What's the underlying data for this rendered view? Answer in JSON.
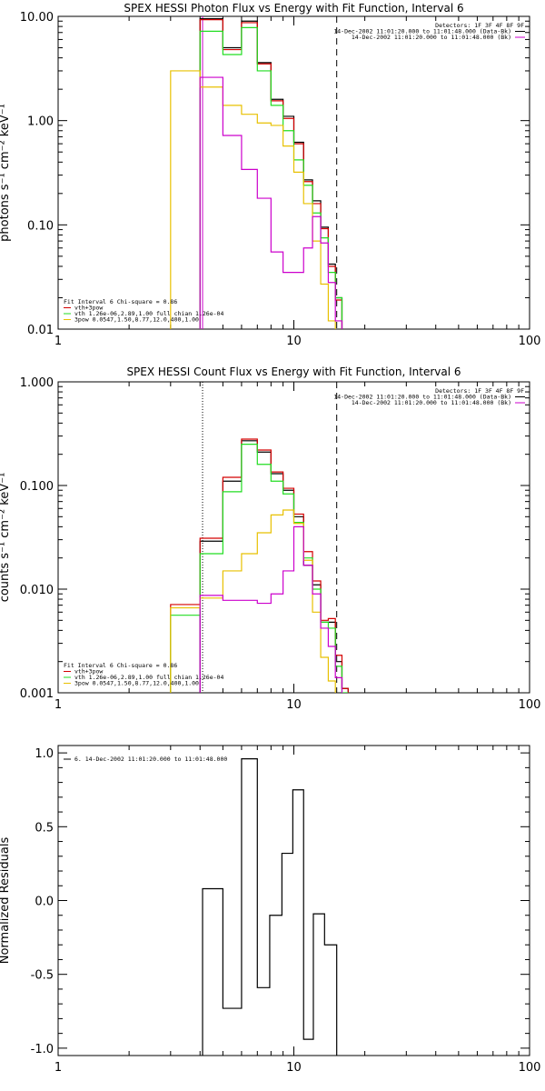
{
  "colors": {
    "black": "#000000",
    "red": "#d40000",
    "green": "#22dd22",
    "magenta": "#cc00cc",
    "orange": "#e8c000"
  },
  "chart_data": [
    {
      "type": "line",
      "step": true,
      "title": "SPEX HESSI Photon Flux vs Energy with Fit Function, Interval 6",
      "ylabel": "photons s⁻¹ cm⁻² keV⁻¹",
      "xlabel": "",
      "xscale": "log",
      "yscale": "log",
      "xlim": [
        1,
        100
      ],
      "ylim": [
        0.01,
        10
      ],
      "x_ticks": [
        "1",
        "10",
        "100"
      ],
      "y_ticks": [
        "0.01",
        "0.10",
        "1.00",
        "10.00"
      ],
      "edges": [
        3,
        4,
        5,
        6,
        7,
        8,
        9,
        10,
        11,
        12,
        13,
        14,
        15,
        16,
        17
      ],
      "series": [
        {
          "color_key": "black",
          "values": [
            null,
            9.5,
            5.0,
            9.0,
            3.6,
            1.6,
            1.1,
            0.62,
            0.27,
            0.17,
            0.095,
            0.042,
            0.02,
            null
          ]
        },
        {
          "color_key": "red",
          "values": [
            null,
            9.3,
            4.8,
            8.7,
            3.5,
            1.55,
            1.05,
            0.6,
            0.26,
            0.16,
            0.092,
            0.04,
            0.019,
            null
          ]
        },
        {
          "color_key": "green",
          "values": [
            null,
            7.2,
            4.3,
            7.8,
            3.0,
            1.4,
            0.8,
            0.42,
            0.24,
            0.13,
            0.075,
            0.035,
            0.02,
            null
          ]
        },
        {
          "color_key": "orange",
          "values": [
            3.0,
            2.1,
            1.4,
            1.15,
            0.95,
            0.9,
            0.57,
            0.32,
            0.16,
            0.07,
            0.027,
            0.012,
            null,
            null
          ]
        },
        {
          "color_key": "magenta",
          "values": [
            null,
            2.6,
            0.72,
            0.34,
            0.18,
            0.055,
            0.035,
            0.035,
            0.06,
            0.12,
            0.067,
            0.028,
            0.012,
            null
          ]
        }
      ],
      "vlines": [
        {
          "x": 4.1,
          "style": "solid",
          "color_key": "magenta"
        },
        {
          "x": 15.2,
          "style": "dashed",
          "color_key": "black"
        }
      ],
      "header_lines": [
        "Detectors: 1F 3F 4F 8F 9F",
        "14-Dec-2002 11:01:20.000 to 11:01:48.000 (Data-Bk)",
        "14-Dec-2002 11:01:20.000 to 11:01:48.000 (Bk)"
      ],
      "legend": [
        {
          "text": "Fit Interval 6   Chi-square = 0.86",
          "color_key": null
        },
        {
          "text": "vth+3pow",
          "color_key": "red"
        },
        {
          "text": "vth 1.26e-06,2.89,1.00   full chian 1.26e-04",
          "color_key": "green"
        },
        {
          "text": "3pow 0.0547,1.50,8.77,12.0,400,1.00",
          "color_key": "orange"
        }
      ]
    },
    {
      "type": "line",
      "step": true,
      "title": "SPEX HESSI Count Flux vs Energy with Fit Function, Interval 6",
      "ylabel": "counts s⁻¹ cm⁻² keV⁻¹",
      "xlabel": "",
      "xscale": "log",
      "yscale": "log",
      "xlim": [
        1,
        100
      ],
      "ylim": [
        0.001,
        1
      ],
      "x_ticks": [
        "1",
        "10",
        "100"
      ],
      "y_ticks": [
        "0.001",
        "0.010",
        "0.100",
        "1.000"
      ],
      "edges": [
        3,
        4,
        5,
        6,
        7,
        8,
        9,
        10,
        11,
        12,
        13,
        14,
        15,
        16,
        17,
        18
      ],
      "series": [
        {
          "color_key": "black",
          "values": [
            null,
            0.029,
            0.11,
            0.27,
            0.21,
            0.13,
            0.09,
            0.05,
            0.017,
            0.011,
            0.0048,
            0.0048,
            0.002,
            0.0011,
            null
          ]
        },
        {
          "color_key": "red",
          "values": [
            0.0071,
            0.031,
            0.12,
            0.28,
            0.22,
            0.135,
            0.094,
            0.053,
            0.023,
            0.012,
            0.005,
            0.0052,
            0.0023,
            0.0011,
            null
          ]
        },
        {
          "color_key": "green",
          "values": [
            0.0056,
            0.022,
            0.087,
            0.25,
            0.16,
            0.11,
            0.083,
            0.044,
            0.02,
            0.01,
            0.0048,
            0.0042,
            0.0018,
            0.001,
            null
          ]
        },
        {
          "color_key": "orange",
          "values": [
            0.0066,
            0.0082,
            0.015,
            0.022,
            0.035,
            0.052,
            0.058,
            0.043,
            0.019,
            0.006,
            0.0022,
            0.0013,
            null,
            null,
            null
          ]
        },
        {
          "color_key": "magenta",
          "values": [
            null,
            0.0087,
            0.0078,
            0.0078,
            0.0073,
            0.009,
            0.015,
            0.04,
            0.017,
            0.009,
            0.0042,
            0.0028,
            0.0014,
            null,
            null
          ]
        }
      ],
      "vlines": [
        {
          "x": 4.1,
          "style": "dotted",
          "color_key": "black"
        },
        {
          "x": 15.2,
          "style": "dashed",
          "color_key": "black"
        }
      ],
      "header_lines": [
        "Detectors: 1F 3F 4F 8F 9F",
        "14-Dec-2002 11:01:20.000 to 11:01:48.000 (Data-Bk)",
        "14-Dec-2002 11:01:20.000 to 11:01:48.000 (Bk)"
      ],
      "legend": [
        {
          "text": "Fit Interval 6   Chi-square = 0.86",
          "color_key": null
        },
        {
          "text": "vth+3pow",
          "color_key": "red"
        },
        {
          "text": "vth 1.26e-06,2.89,1.00   full chian 1.26e-04",
          "color_key": "green"
        },
        {
          "text": "3pow 0.0547,1.50,8.77,12.0,400,1.00",
          "color_key": "orange"
        }
      ]
    },
    {
      "type": "line",
      "step": true,
      "title": "",
      "ylabel": "Normalized Residuals",
      "xlabel": "",
      "xscale": "log",
      "yscale": "linear",
      "xlim": [
        1,
        100
      ],
      "ylim": [
        -1.05,
        1.05
      ],
      "x_ticks": [
        "1",
        "10",
        "100"
      ],
      "y_ticks": [
        "-1.0",
        "-0.5",
        "0.0",
        "0.5",
        "1.0"
      ],
      "edges": [
        4.1,
        5.0,
        6.0,
        7.0,
        7.9,
        8.9,
        9.9,
        11.0,
        12.1,
        13.5,
        15.2
      ],
      "series": [
        {
          "color_key": "black",
          "values": [
            0.08,
            -0.73,
            0.96,
            -0.59,
            -0.1,
            0.32,
            0.75,
            -0.94,
            -0.09,
            -0.3
          ]
        }
      ],
      "legend": [
        {
          "text": "6. 14-Dec-2002 11:01:20.000 to 11:01:48.000",
          "color_key": "black"
        }
      ]
    }
  ]
}
